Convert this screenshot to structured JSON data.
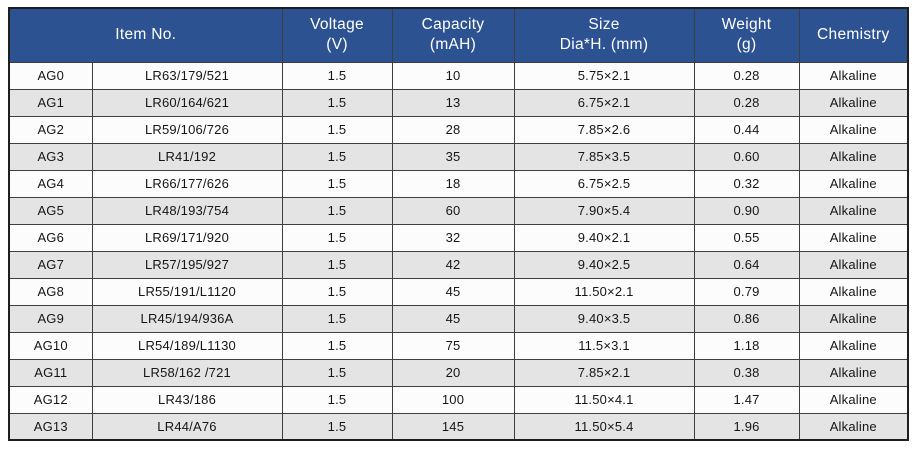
{
  "colors": {
    "header_bg": "#2C5292",
    "header_text": "#FFFFFF",
    "row_bg": "#FCFCFC",
    "row_alt_bg": "#E4E4E4",
    "border": "#3E3E3E"
  },
  "table": {
    "header": {
      "item_no": "Item No.",
      "voltage_l1": "Voltage",
      "voltage_l2": "(V)",
      "capacity_l1": "Capacity",
      "capacity_l2": "(mAH)",
      "size_l1": "Size",
      "size_l2": "Dia*H. (mm)",
      "weight_l1": "Weight",
      "weight_l2": "(g)",
      "chemistry": "Chemistry"
    },
    "column_keys": [
      "item_code",
      "model",
      "voltage_v",
      "capacity_mah",
      "size_mm",
      "weight_g",
      "chemistry"
    ],
    "rows": [
      {
        "item_code": "AG0",
        "model": "LR63/179/521",
        "voltage_v": "1.5",
        "capacity_mah": "10",
        "size_mm": "5.75×2.1",
        "weight_g": "0.28",
        "chemistry": "Alkaline"
      },
      {
        "item_code": "AG1",
        "model": "LR60/164/621",
        "voltage_v": "1.5",
        "capacity_mah": "13",
        "size_mm": "6.75×2.1",
        "weight_g": "0.28",
        "chemistry": "Alkaline"
      },
      {
        "item_code": "AG2",
        "model": "LR59/106/726",
        "voltage_v": "1.5",
        "capacity_mah": "28",
        "size_mm": "7.85×2.6",
        "weight_g": "0.44",
        "chemistry": "Alkaline"
      },
      {
        "item_code": "AG3",
        "model": "LR41/192",
        "voltage_v": "1.5",
        "capacity_mah": "35",
        "size_mm": "7.85×3.5",
        "weight_g": "0.60",
        "chemistry": "Alkaline"
      },
      {
        "item_code": "AG4",
        "model": "LR66/177/626",
        "voltage_v": "1.5",
        "capacity_mah": "18",
        "size_mm": "6.75×2.5",
        "weight_g": "0.32",
        "chemistry": "Alkaline"
      },
      {
        "item_code": "AG5",
        "model": "LR48/193/754",
        "voltage_v": "1.5",
        "capacity_mah": "60",
        "size_mm": "7.90×5.4",
        "weight_g": "0.90",
        "chemistry": "Alkaline"
      },
      {
        "item_code": "AG6",
        "model": "LR69/171/920",
        "voltage_v": "1.5",
        "capacity_mah": "32",
        "size_mm": "9.40×2.1",
        "weight_g": "0.55",
        "chemistry": "Alkaline"
      },
      {
        "item_code": "AG7",
        "model": "LR57/195/927",
        "voltage_v": "1.5",
        "capacity_mah": "42",
        "size_mm": "9.40×2.5",
        "weight_g": "0.64",
        "chemistry": "Alkaline"
      },
      {
        "item_code": "AG8",
        "model": "LR55/191/L1120",
        "voltage_v": "1.5",
        "capacity_mah": "45",
        "size_mm": "11.50×2.1",
        "weight_g": "0.79",
        "chemistry": "Alkaline"
      },
      {
        "item_code": "AG9",
        "model": "LR45/194/936A",
        "voltage_v": "1.5",
        "capacity_mah": "45",
        "size_mm": "9.40×3.5",
        "weight_g": "0.86",
        "chemistry": "Alkaline"
      },
      {
        "item_code": "AG10",
        "model": "LR54/189/L1130",
        "voltage_v": "1.5",
        "capacity_mah": "75",
        "size_mm": "11.5×3.1",
        "weight_g": "1.18",
        "chemistry": "Alkaline"
      },
      {
        "item_code": "AG11",
        "model": "LR58/162 /721",
        "voltage_v": "1.5",
        "capacity_mah": "20",
        "size_mm": "7.85×2.1",
        "weight_g": "0.38",
        "chemistry": "Alkaline"
      },
      {
        "item_code": "AG12",
        "model": "LR43/186",
        "voltage_v": "1.5",
        "capacity_mah": "100",
        "size_mm": "11.50×4.1",
        "weight_g": "1.47",
        "chemistry": "Alkaline"
      },
      {
        "item_code": "AG13",
        "model": "LR44/A76",
        "voltage_v": "1.5",
        "capacity_mah": "145",
        "size_mm": "11.50×5.4",
        "weight_g": "1.96",
        "chemistry": "Alkaline"
      }
    ]
  }
}
